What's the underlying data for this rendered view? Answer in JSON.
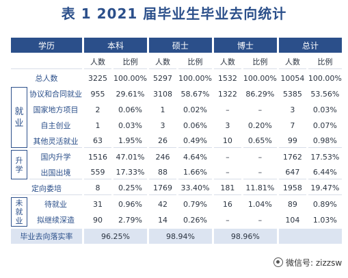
{
  "title": "表 1  2021 届毕业生毕业去向统计",
  "header": {
    "col_label": "学历",
    "groups": [
      "本科",
      "硕士",
      "博士",
      "总计"
    ],
    "sub_count": "人数",
    "sub_ratio": "比例"
  },
  "total_row": {
    "label": "总人数",
    "values": [
      "3225",
      "100.00%",
      "5297",
      "100.00%",
      "1532",
      "100.00%",
      "10054",
      "100.00%"
    ]
  },
  "categories": {
    "employment": "就业",
    "further_study": "升学",
    "unemployed": "未就业"
  },
  "rows": [
    {
      "label": "协议和合同就业",
      "values": [
        "955",
        "29.61%",
        "3108",
        "58.67%",
        "1322",
        "86.29%",
        "5385",
        "53.56%"
      ]
    },
    {
      "label": "国家地方项目",
      "values": [
        "2",
        "0.06%",
        "1",
        "0.02%",
        "–",
        "–",
        "3",
        "0.03%"
      ]
    },
    {
      "label": "自主创业",
      "values": [
        "1",
        "0.03%",
        "3",
        "0.06%",
        "3",
        "0.20%",
        "7",
        "0.07%"
      ]
    },
    {
      "label": "其他灵活就业",
      "values": [
        "63",
        "1.95%",
        "26",
        "0.49%",
        "10",
        "0.65%",
        "99",
        "0.98%"
      ]
    },
    {
      "label": "国内升学",
      "values": [
        "1516",
        "47.01%",
        "246",
        "4.64%",
        "–",
        "–",
        "1762",
        "17.53%"
      ]
    },
    {
      "label": "出国出境",
      "values": [
        "559",
        "17.33%",
        "88",
        "1.66%",
        "–",
        "–",
        "647",
        "6.44%"
      ]
    },
    {
      "label": "定向委培",
      "values": [
        "8",
        "0.25%",
        "1769",
        "33.40%",
        "181",
        "11.81%",
        "1958",
        "19.47%"
      ]
    },
    {
      "label": "待就业",
      "values": [
        "31",
        "0.96%",
        "42",
        "0.79%",
        "16",
        "1.04%",
        "89",
        "0.89%"
      ]
    },
    {
      "label": "拟继续深造",
      "values": [
        "90",
        "2.79%",
        "14",
        "0.26%",
        "–",
        "–",
        "104",
        "1.03%"
      ]
    }
  ],
  "footer": {
    "label": "毕业去向落实率",
    "values": [
      "96.25%",
      "98.94%",
      "98.96%",
      ""
    ]
  },
  "watermark": "微信号: zizzsw",
  "colors": {
    "accent": "#2b4f8a",
    "footer_bg": "#dce4f1"
  }
}
